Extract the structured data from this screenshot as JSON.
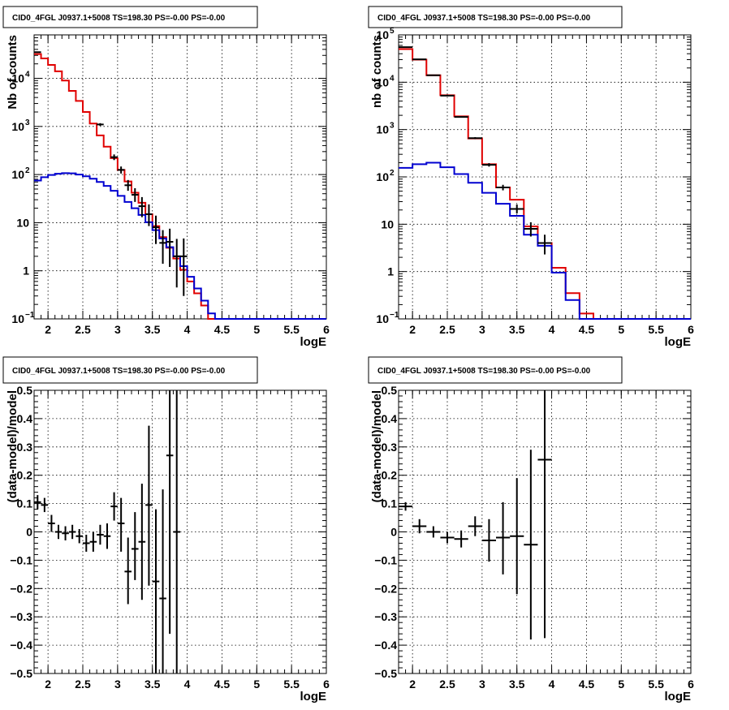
{
  "chart_data": [
    {
      "type": "line",
      "title": "CID0_4FGL J0937.1+5008 TS=198.30 PS=-0.00 PS=-0.00",
      "xlabel": "logE",
      "ylabel": "Nb of counts",
      "xlim": [
        1.8,
        6
      ],
      "ylim": [
        0.1,
        80000
      ],
      "log_y": true,
      "grid": true,
      "xticks": [
        "2",
        "2.5",
        "3",
        "3.5",
        "4",
        "4.5",
        "5",
        "5.5",
        "6"
      ],
      "yticks": [
        {
          "value": 0.1,
          "mantissa": "10",
          "exp": "−1"
        },
        {
          "value": 1,
          "mantissa": "1",
          "exp": ""
        },
        {
          "value": 10,
          "mantissa": "10",
          "exp": ""
        },
        {
          "value": 100,
          "mantissa": "10",
          "exp": "2"
        },
        {
          "value": 1000,
          "mantissa": "10",
          "exp": "3"
        },
        {
          "value": 10000,
          "mantissa": "10",
          "exp": "4"
        }
      ],
      "bin_width": 0.1,
      "x": [
        1.85,
        1.95,
        2.05,
        2.15,
        2.25,
        2.35,
        2.45,
        2.55,
        2.65,
        2.75,
        2.85,
        2.95,
        3.05,
        3.15,
        3.25,
        3.35,
        3.45,
        3.55,
        3.65,
        3.75,
        3.85,
        3.95,
        4.05,
        4.15,
        4.25,
        4.35,
        4.45,
        4.55,
        4.65,
        4.75,
        4.85,
        4.95,
        5.05,
        5.15,
        5.25,
        5.35,
        5.45,
        5.55,
        5.65,
        5.75,
        5.85,
        5.95
      ],
      "series": [
        {
          "color": "#e00000",
          "values": [
            32000,
            26000,
            19000,
            14000,
            9000,
            5500,
            3400,
            2000,
            1150,
            650,
            380,
            220,
            125,
            72,
            42,
            26,
            15,
            8.5,
            5,
            3,
            1.8,
            1.05,
            0.6,
            0.34,
            0.19,
            0.1,
            0.1,
            0.1,
            0.1,
            0.1,
            0.1,
            0.1,
            0.1,
            0.1,
            0.1,
            0.1,
            0.1,
            0.1,
            0.1,
            0.1,
            0.1,
            0.1
          ]
        },
        {
          "color": "#0000d0",
          "values": [
            75,
            88,
            98,
            104,
            107,
            106,
            100,
            92,
            82,
            70,
            58,
            46,
            36,
            27,
            20,
            14.5,
            10.2,
            7,
            4.7,
            3.1,
            2.0,
            1.25,
            0.75,
            0.43,
            0.24,
            0.13,
            0.1,
            0.1,
            0.1,
            0.1,
            0.1,
            0.1,
            0.1,
            0.1,
            0.1,
            0.1,
            0.1,
            0.1,
            0.1,
            0.1,
            0.1,
            0.1
          ]
        }
      ],
      "data_points": {
        "color": "#000000",
        "x": [
          1.85,
          2.75,
          2.95,
          3.05,
          3.15,
          3.25,
          3.35,
          3.45,
          3.55,
          3.65,
          3.75,
          3.85,
          3.95
        ],
        "y": [
          35000,
          1100,
          230,
          125,
          60,
          38,
          22,
          15,
          8,
          3.8,
          4,
          2,
          2
        ],
        "ylo": [
          34000,
          1030,
          200,
          105,
          46,
          27,
          13,
          8.5,
          3.6,
          1.4,
          1.2,
          0.45,
          0.3
        ],
        "yhi": [
          36000,
          1170,
          262,
          147,
          77,
          52,
          34,
          24,
          14,
          7,
          7.5,
          4.6,
          4.7
        ]
      }
    },
    {
      "type": "line",
      "title": "CID0_4FGL J0937.1+5008 TS=198.30 PS=-0.00 PS=-0.00",
      "xlabel": "logE",
      "ylabel": "nb of counts",
      "xlim": [
        1.8,
        6
      ],
      "ylim": [
        0.1,
        100000
      ],
      "log_y": true,
      "grid": true,
      "xticks": [
        "2",
        "2.5",
        "3",
        "3.5",
        "4",
        "4.5",
        "5",
        "5.5",
        "6"
      ],
      "yticks": [
        {
          "value": 0.1,
          "mantissa": "10",
          "exp": "−1"
        },
        {
          "value": 1,
          "mantissa": "1",
          "exp": ""
        },
        {
          "value": 10,
          "mantissa": "10",
          "exp": ""
        },
        {
          "value": 100,
          "mantissa": "10",
          "exp": "2"
        },
        {
          "value": 1000,
          "mantissa": "10",
          "exp": "3"
        },
        {
          "value": 10000,
          "mantissa": "10",
          "exp": "4"
        },
        {
          "value": 100000,
          "mantissa": "10",
          "exp": "5"
        }
      ],
      "bin_width": 0.2,
      "x": [
        1.9,
        2.1,
        2.3,
        2.5,
        2.7,
        2.9,
        3.1,
        3.3,
        3.5,
        3.7,
        3.9,
        4.1,
        4.3,
        4.5,
        4.7,
        4.9,
        5.1,
        5.3,
        5.5,
        5.7,
        5.9
      ],
      "series": [
        {
          "color": "#e00000",
          "values": [
            50000,
            30000,
            14000,
            5300,
            1900,
            650,
            185,
            60,
            33,
            9,
            4,
            1.2,
            0.35,
            0.13,
            0.1,
            0.1,
            0.1,
            0.1,
            0.1,
            0.1,
            0.1
          ]
        },
        {
          "color": "#0000d0",
          "values": [
            155,
            185,
            200,
            160,
            115,
            75,
            46,
            27,
            15,
            6,
            3.5,
            0.95,
            0.25,
            0.1,
            0.1,
            0.1,
            0.1,
            0.1,
            0.1,
            0.1,
            0.1
          ]
        }
      ],
      "data_points": {
        "color": "#000000",
        "x": [
          1.9,
          2.1,
          2.3,
          2.5,
          2.7,
          2.9,
          3.1,
          3.3,
          3.5,
          3.7,
          3.9
        ],
        "y": [
          55000,
          30500,
          14000,
          5200,
          1850,
          660,
          180,
          60,
          21,
          8,
          4
        ],
        "ylo": [
          54000,
          30000,
          13800,
          5100,
          1800,
          630,
          165,
          52,
          17,
          5.5,
          2.3
        ],
        "yhi": [
          56000,
          31000,
          14200,
          5300,
          1900,
          690,
          195,
          68,
          26,
          11,
          6
        ]
      }
    },
    {
      "type": "scatter",
      "title": "CID0_4FGL J0937.1+5008 TS=198.30 PS=-0.00 PS=-0.00",
      "xlabel": "logE",
      "ylabel": "(data-model)/model",
      "xlim": [
        1.8,
        6
      ],
      "ylim": [
        -0.5,
        0.5
      ],
      "grid": true,
      "xticks": [
        "2",
        "2.5",
        "3",
        "3.5",
        "4",
        "4.5",
        "5",
        "5.5",
        "6"
      ],
      "yticks": [
        "−0.5",
        "−0.4",
        "−0.3",
        "−0.2",
        "−0.1",
        "0",
        "0.1",
        "0.2",
        "0.3",
        "0.4",
        "0.5"
      ],
      "bin_width": 0.1,
      "points": {
        "color": "#000000",
        "x": [
          1.85,
          1.95,
          2.05,
          2.15,
          2.25,
          2.35,
          2.45,
          2.55,
          2.65,
          2.75,
          2.85,
          2.95,
          3.05,
          3.15,
          3.25,
          3.35,
          3.45,
          3.55,
          3.65,
          3.75,
          3.85
        ],
        "y": [
          0.105,
          0.095,
          0.03,
          0.0,
          -0.005,
          0.0,
          -0.015,
          -0.04,
          -0.035,
          -0.01,
          -0.015,
          0.09,
          0.03,
          -0.14,
          -0.06,
          -0.035,
          0.095,
          -0.175,
          -0.235,
          0.27,
          0.0
        ],
        "ylo": [
          0.08,
          0.07,
          0.0,
          -0.025,
          -0.03,
          -0.025,
          -0.04,
          -0.07,
          -0.07,
          -0.045,
          -0.06,
          0.04,
          -0.07,
          -0.255,
          -0.17,
          -0.24,
          -0.19,
          -0.5,
          -0.5,
          -0.36,
          -0.5
        ],
        "yhi": [
          0.13,
          0.12,
          0.06,
          0.025,
          0.02,
          0.025,
          0.01,
          -0.01,
          0.0,
          0.025,
          0.03,
          0.14,
          0.12,
          -0.02,
          0.07,
          0.17,
          0.375,
          0.08,
          0.15,
          0.5,
          0.5
        ]
      }
    },
    {
      "type": "scatter",
      "title": "CID0_4FGL J0937.1+5008 TS=198.30 PS=-0.00 PS=-0.00",
      "xlabel": "logE",
      "ylabel": "(data-model)/model",
      "xlim": [
        1.8,
        6
      ],
      "ylim": [
        -0.5,
        0.5
      ],
      "grid": true,
      "xticks": [
        "2",
        "2.5",
        "3",
        "3.5",
        "4",
        "4.5",
        "5",
        "5.5",
        "6"
      ],
      "yticks": [
        "−0.5",
        "−0.4",
        "−0.3",
        "−0.2",
        "−0.1",
        "0",
        "0.1",
        "0.2",
        "0.3",
        "0.4",
        "0.5"
      ],
      "bin_width": 0.2,
      "points": {
        "color": "#000000",
        "x": [
          1.9,
          2.1,
          2.3,
          2.5,
          2.7,
          2.9,
          3.1,
          3.3,
          3.5,
          3.7,
          3.9
        ],
        "y": [
          0.09,
          0.02,
          0.0,
          -0.02,
          -0.025,
          0.02,
          -0.03,
          -0.02,
          -0.015,
          -0.045,
          0.255
        ],
        "ylo": [
          0.075,
          -0.005,
          -0.02,
          -0.04,
          -0.055,
          -0.015,
          -0.105,
          -0.15,
          -0.22,
          -0.38,
          -0.375
        ],
        "yhi": [
          0.105,
          0.045,
          0.02,
          0.0,
          0.005,
          0.055,
          0.045,
          0.105,
          0.19,
          0.29,
          0.5
        ]
      }
    }
  ]
}
